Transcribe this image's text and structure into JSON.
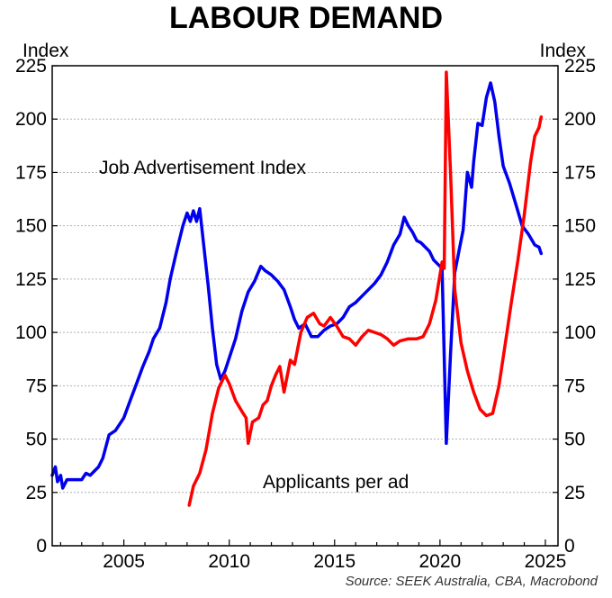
{
  "chart_data": {
    "type": "line",
    "title": "LABOUR DEMAND",
    "left_axis_label": "Index",
    "right_axis_label": "Index",
    "xlim": [
      2001.6,
      2025.6
    ],
    "ylim": [
      0,
      225
    ],
    "x_ticks": [
      2005,
      2010,
      2015,
      2020,
      2025
    ],
    "y_ticks": [
      0,
      25,
      50,
      75,
      100,
      125,
      150,
      175,
      200,
      225
    ],
    "grid": "horizontal dotted",
    "source": "Source: SEEK Australia, CBA, Macrobond",
    "colors": {
      "job_ads": "#0000ee",
      "applicants": "#ff0000",
      "grid": "#b0b0b0",
      "axis": "#000000"
    },
    "series": [
      {
        "name": "Job Advertisement Index",
        "color": "#0000ee",
        "points": [
          [
            2001.6,
            33
          ],
          [
            2001.75,
            37
          ],
          [
            2001.85,
            30
          ],
          [
            2002.0,
            33
          ],
          [
            2002.1,
            27
          ],
          [
            2002.3,
            31
          ],
          [
            2002.6,
            31
          ],
          [
            2003.0,
            31
          ],
          [
            2003.2,
            34
          ],
          [
            2003.4,
            33
          ],
          [
            2003.6,
            35
          ],
          [
            2003.8,
            37
          ],
          [
            2004.0,
            41
          ],
          [
            2004.3,
            52
          ],
          [
            2004.6,
            54
          ],
          [
            2005.0,
            60
          ],
          [
            2005.3,
            68
          ],
          [
            2005.6,
            76
          ],
          [
            2005.9,
            84
          ],
          [
            2006.2,
            91
          ],
          [
            2006.4,
            97
          ],
          [
            2006.7,
            102
          ],
          [
            2007.0,
            114
          ],
          [
            2007.2,
            125
          ],
          [
            2007.5,
            138
          ],
          [
            2007.8,
            150
          ],
          [
            2008.0,
            156
          ],
          [
            2008.15,
            152
          ],
          [
            2008.3,
            157
          ],
          [
            2008.45,
            152
          ],
          [
            2008.6,
            158
          ],
          [
            2008.8,
            140
          ],
          [
            2009.0,
            122
          ],
          [
            2009.2,
            102
          ],
          [
            2009.4,
            85
          ],
          [
            2009.6,
            78
          ],
          [
            2009.8,
            82
          ],
          [
            2010.0,
            88
          ],
          [
            2010.3,
            97
          ],
          [
            2010.6,
            110
          ],
          [
            2010.9,
            119
          ],
          [
            2011.2,
            124
          ],
          [
            2011.5,
            131
          ],
          [
            2011.7,
            129
          ],
          [
            2012.0,
            127
          ],
          [
            2012.3,
            124
          ],
          [
            2012.6,
            120
          ],
          [
            2012.9,
            112
          ],
          [
            2013.1,
            106
          ],
          [
            2013.3,
            102
          ],
          [
            2013.6,
            104
          ],
          [
            2013.9,
            98
          ],
          [
            2014.2,
            98
          ],
          [
            2014.5,
            101
          ],
          [
            2014.8,
            103
          ],
          [
            2015.1,
            104
          ],
          [
            2015.4,
            107
          ],
          [
            2015.7,
            112
          ],
          [
            2016.0,
            114
          ],
          [
            2016.3,
            117
          ],
          [
            2016.6,
            120
          ],
          [
            2016.9,
            123
          ],
          [
            2017.2,
            127
          ],
          [
            2017.5,
            133
          ],
          [
            2017.8,
            141
          ],
          [
            2018.1,
            146
          ],
          [
            2018.3,
            154
          ],
          [
            2018.5,
            150
          ],
          [
            2018.7,
            147
          ],
          [
            2018.9,
            143
          ],
          [
            2019.1,
            142
          ],
          [
            2019.3,
            140
          ],
          [
            2019.5,
            138
          ],
          [
            2019.7,
            134
          ],
          [
            2019.9,
            132
          ],
          [
            2020.1,
            130
          ],
          [
            2020.3,
            48
          ],
          [
            2020.5,
            90
          ],
          [
            2020.7,
            128
          ],
          [
            2020.9,
            138
          ],
          [
            2021.1,
            148
          ],
          [
            2021.3,
            175
          ],
          [
            2021.5,
            168
          ],
          [
            2021.6,
            180
          ],
          [
            2021.8,
            198
          ],
          [
            2022.0,
            197
          ],
          [
            2022.2,
            210
          ],
          [
            2022.4,
            217
          ],
          [
            2022.6,
            208
          ],
          [
            2022.8,
            192
          ],
          [
            2023.0,
            178
          ],
          [
            2023.3,
            170
          ],
          [
            2023.6,
            160
          ],
          [
            2023.9,
            150
          ],
          [
            2024.2,
            146
          ],
          [
            2024.5,
            141
          ],
          [
            2024.7,
            140
          ],
          [
            2024.8,
            137
          ]
        ]
      },
      {
        "name": "Applicants per ad",
        "color": "#ff0000",
        "points": [
          [
            2008.1,
            19
          ],
          [
            2008.3,
            28
          ],
          [
            2008.6,
            34
          ],
          [
            2008.9,
            45
          ],
          [
            2009.2,
            62
          ],
          [
            2009.5,
            74
          ],
          [
            2009.8,
            80
          ],
          [
            2010.0,
            76
          ],
          [
            2010.3,
            68
          ],
          [
            2010.6,
            63
          ],
          [
            2010.8,
            60
          ],
          [
            2010.9,
            48
          ],
          [
            2011.1,
            58
          ],
          [
            2011.4,
            60
          ],
          [
            2011.6,
            66
          ],
          [
            2011.8,
            68
          ],
          [
            2012.0,
            75
          ],
          [
            2012.2,
            80
          ],
          [
            2012.4,
            84
          ],
          [
            2012.6,
            72
          ],
          [
            2012.9,
            87
          ],
          [
            2013.1,
            85
          ],
          [
            2013.4,
            100
          ],
          [
            2013.7,
            107
          ],
          [
            2014.0,
            109
          ],
          [
            2014.3,
            104
          ],
          [
            2014.5,
            103
          ],
          [
            2014.8,
            107
          ],
          [
            2015.1,
            103
          ],
          [
            2015.4,
            98
          ],
          [
            2015.7,
            97
          ],
          [
            2016.0,
            94
          ],
          [
            2016.3,
            98
          ],
          [
            2016.6,
            101
          ],
          [
            2016.9,
            100
          ],
          [
            2017.2,
            99
          ],
          [
            2017.5,
            97
          ],
          [
            2017.8,
            94
          ],
          [
            2018.1,
            96
          ],
          [
            2018.5,
            97
          ],
          [
            2018.9,
            97
          ],
          [
            2019.2,
            98
          ],
          [
            2019.5,
            104
          ],
          [
            2019.8,
            115
          ],
          [
            2020.1,
            133
          ],
          [
            2020.2,
            130
          ],
          [
            2020.3,
            222
          ],
          [
            2020.5,
            175
          ],
          [
            2020.7,
            120
          ],
          [
            2021.0,
            95
          ],
          [
            2021.3,
            82
          ],
          [
            2021.6,
            72
          ],
          [
            2021.9,
            64
          ],
          [
            2022.2,
            61
          ],
          [
            2022.5,
            62
          ],
          [
            2022.8,
            75
          ],
          [
            2023.1,
            95
          ],
          [
            2023.4,
            115
          ],
          [
            2023.7,
            134
          ],
          [
            2024.0,
            155
          ],
          [
            2024.3,
            180
          ],
          [
            2024.5,
            192
          ],
          [
            2024.7,
            196
          ],
          [
            2024.8,
            201
          ]
        ]
      }
    ]
  }
}
